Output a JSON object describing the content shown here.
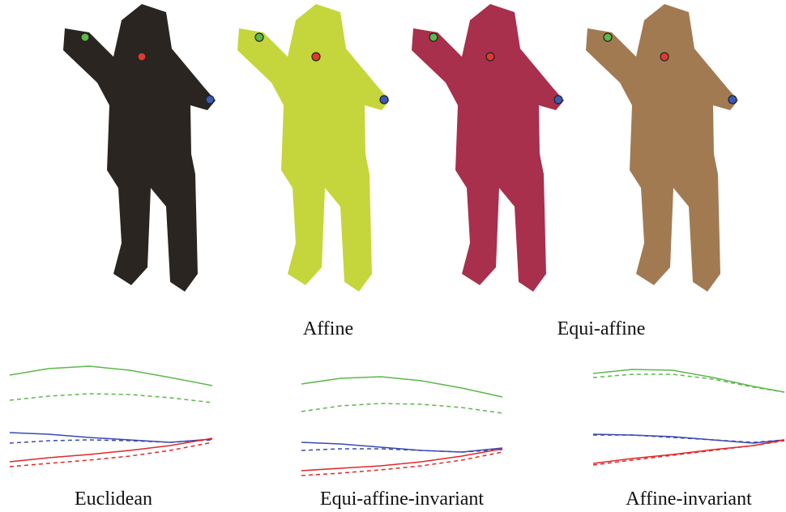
{
  "labels": {
    "affine": "Affine",
    "equi_affine": "Equi-affine"
  },
  "plots": [
    {
      "label": "Euclidean"
    },
    {
      "label": "Equi-affine-invariant"
    },
    {
      "label": "Affine-invariant"
    }
  ]
}
